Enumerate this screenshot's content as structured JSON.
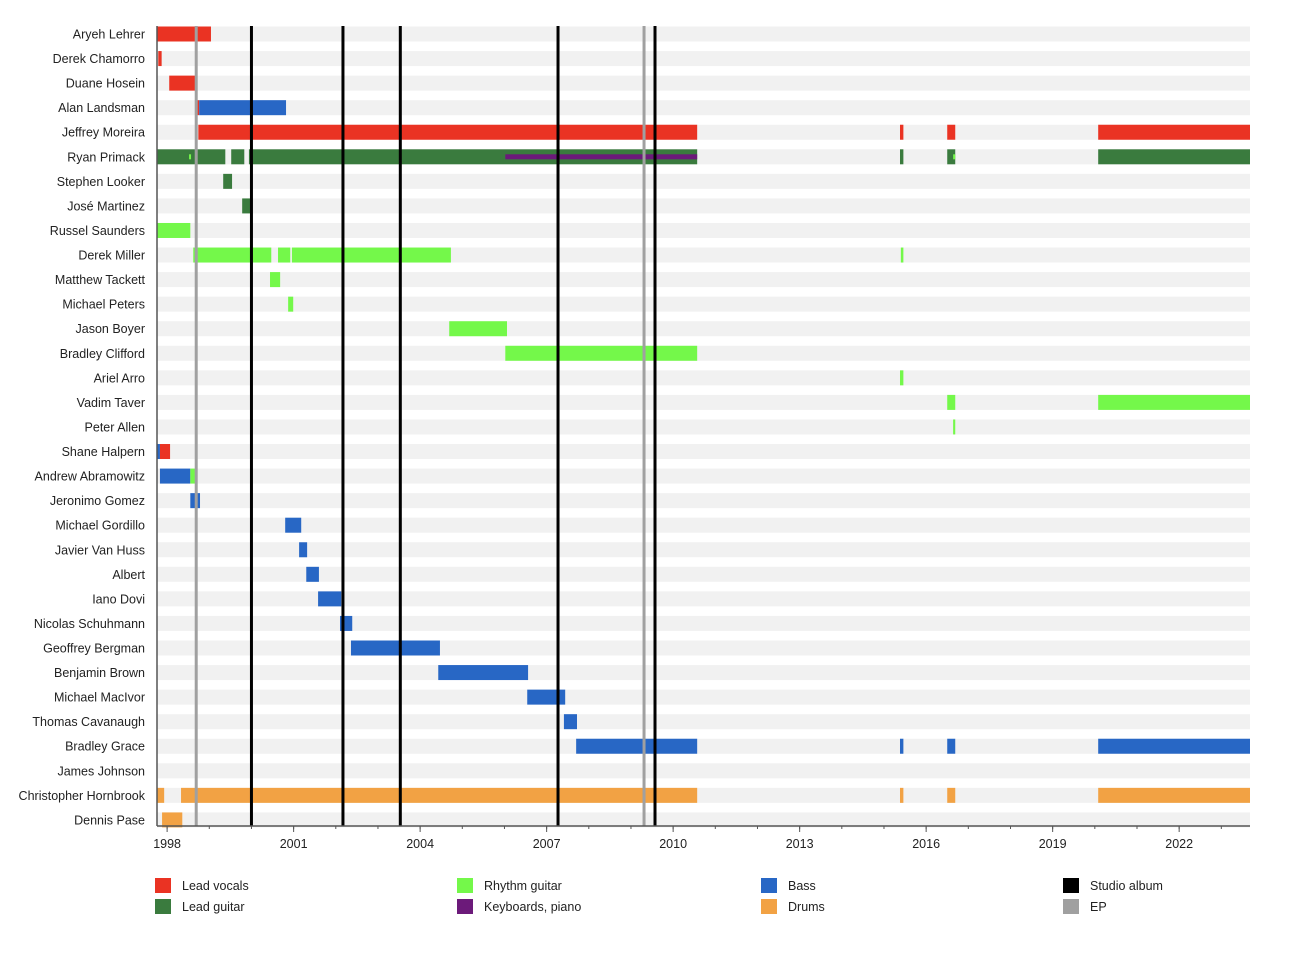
{
  "chart_data": {
    "type": "timeline",
    "title": "",
    "xlim": [
      1997.76,
      2023.68
    ],
    "x_ticks": [
      1998,
      2001,
      2004,
      2007,
      2010,
      2013,
      2016,
      2019,
      2022
    ],
    "x_tick_labels": [
      "1998",
      "2001",
      "2004",
      "2007",
      "2010",
      "2013",
      "2016",
      "2019",
      "2022"
    ],
    "minor_tick_step_years": 1,
    "roles": {
      "vocals": {
        "label": "Lead vocals",
        "color": "#ea3323"
      },
      "lead": {
        "label": "Lead guitar",
        "color": "#3a7b3e"
      },
      "rhythm": {
        "label": "Rhythm guitar",
        "color": "#74f84a"
      },
      "keys": {
        "label": "Keyboards, piano",
        "color": "#6c1a7a"
      },
      "bass": {
        "label": "Bass",
        "color": "#2867c5"
      },
      "drums": {
        "label": "Drums",
        "color": "#f2a244"
      }
    },
    "events": {
      "studio": {
        "label": "Studio album",
        "color": "#000000",
        "dates": [
          2000.0,
          2002.17,
          2003.53,
          2007.27,
          2009.57
        ]
      },
      "ep": {
        "label": "EP",
        "color": "#a0a0a0",
        "dates": [
          1998.69,
          2009.31
        ]
      }
    },
    "legend": [
      {
        "key": "vocals",
        "label": "Lead vocals",
        "color": "#ea3323"
      },
      {
        "key": "lead",
        "label": "Lead guitar",
        "color": "#3a7b3e"
      },
      {
        "key": "rhythm",
        "label": "Rhythm guitar",
        "color": "#74f84a"
      },
      {
        "key": "keys",
        "label": "Keyboards, piano",
        "color": "#6c1a7a"
      },
      {
        "key": "bass",
        "label": "Bass",
        "color": "#2867c5"
      },
      {
        "key": "drums",
        "label": "Drums",
        "color": "#f2a244"
      },
      {
        "key": "studio",
        "label": "Studio album",
        "color": "#000000"
      },
      {
        "key": "ep",
        "label": "EP",
        "color": "#a0a0a0"
      }
    ],
    "legend_placement": "bottom",
    "members": [
      {
        "name": "Aryeh Lehrer",
        "periods": [
          [
            1997.76,
            1999.04,
            "vocals"
          ]
        ]
      },
      {
        "name": "Derek Chamorro",
        "periods": [
          [
            1997.79,
            1997.87,
            "vocals"
          ]
        ]
      },
      {
        "name": "Duane Hosein",
        "periods": [
          [
            1998.05,
            1998.69,
            "vocals"
          ]
        ]
      },
      {
        "name": "Alan Landsman",
        "periods": [
          [
            1998.66,
            1998.76,
            "vocals"
          ],
          [
            1998.76,
            2000.82,
            "bass"
          ]
        ]
      },
      {
        "name": "Jeffrey Moreira",
        "periods": [
          [
            1998.74,
            2010.57,
            "vocals"
          ],
          [
            2015.38,
            2015.46,
            "vocals"
          ],
          [
            2016.5,
            2016.69,
            "vocals"
          ],
          [
            2020.08,
            2023.68,
            "vocals"
          ]
        ]
      },
      {
        "name": "Ryan Primack",
        "periods": [
          [
            1997.76,
            1999.38,
            "lead"
          ],
          [
            1998.52,
            1998.56,
            "rhythm",
            "thin"
          ],
          [
            1999.52,
            1999.83,
            "lead"
          ],
          [
            1999.94,
            2010.57,
            "lead"
          ],
          [
            2006.02,
            2010.57,
            "keys",
            "thin"
          ],
          [
            2015.38,
            2015.46,
            "lead"
          ],
          [
            2016.5,
            2016.69,
            "lead"
          ],
          [
            2016.64,
            2016.69,
            "rhythm",
            "thin"
          ],
          [
            2020.08,
            2023.68,
            "lead"
          ]
        ]
      },
      {
        "name": "Stephen Looker",
        "periods": [
          [
            1999.33,
            1999.54,
            "lead"
          ]
        ]
      },
      {
        "name": "José Martinez",
        "periods": [
          [
            1999.78,
            1999.99,
            "lead"
          ]
        ]
      },
      {
        "name": "Russel Saunders",
        "periods": [
          [
            1997.76,
            1998.55,
            "rhythm"
          ]
        ]
      },
      {
        "name": "Derek Miller",
        "periods": [
          [
            1998.62,
            2000.47,
            "rhythm"
          ],
          [
            2000.63,
            2000.92,
            "rhythm"
          ],
          [
            2000.96,
            2004.73,
            "rhythm"
          ],
          [
            2015.4,
            2015.46,
            "rhythm"
          ]
        ]
      },
      {
        "name": "Matthew Tackett",
        "periods": [
          [
            2000.44,
            2000.68,
            "rhythm"
          ]
        ]
      },
      {
        "name": "Michael Peters",
        "periods": [
          [
            2000.87,
            2000.99,
            "rhythm"
          ]
        ]
      },
      {
        "name": "Jason Boyer",
        "periods": [
          [
            2004.69,
            2006.06,
            "rhythm"
          ]
        ]
      },
      {
        "name": "Bradley Clifford",
        "periods": [
          [
            2006.02,
            2010.57,
            "rhythm"
          ]
        ]
      },
      {
        "name": "Ariel Arro",
        "periods": [
          [
            2015.38,
            2015.46,
            "rhythm"
          ]
        ]
      },
      {
        "name": "Vadim Taver",
        "periods": [
          [
            2016.5,
            2016.69,
            "rhythm"
          ],
          [
            2020.08,
            2023.68,
            "rhythm"
          ]
        ]
      },
      {
        "name": "Peter Allen",
        "periods": [
          [
            2016.64,
            2016.69,
            "rhythm"
          ]
        ]
      },
      {
        "name": "Shane Halpern",
        "periods": [
          [
            1997.76,
            1997.83,
            "bass"
          ],
          [
            1997.83,
            1998.07,
            "vocals"
          ]
        ]
      },
      {
        "name": "Andrew Abramowitz",
        "periods": [
          [
            1997.83,
            1998.55,
            "bass"
          ],
          [
            1998.55,
            1998.66,
            "rhythm"
          ]
        ]
      },
      {
        "name": "Jeronimo Gomez",
        "periods": [
          [
            1998.55,
            1998.78,
            "bass"
          ]
        ]
      },
      {
        "name": "Michael Gordillo",
        "periods": [
          [
            2000.8,
            2001.18,
            "bass"
          ]
        ]
      },
      {
        "name": "Javier Van Huss",
        "periods": [
          [
            2001.13,
            2001.32,
            "bass"
          ]
        ]
      },
      {
        "name": "Albert",
        "periods": [
          [
            2001.3,
            2001.6,
            "bass"
          ]
        ]
      },
      {
        "name": "Iano Dovi",
        "periods": [
          [
            2001.58,
            2002.13,
            "bass"
          ]
        ]
      },
      {
        "name": "Nicolas Schuhmann",
        "periods": [
          [
            2002.1,
            2002.39,
            "bass"
          ]
        ]
      },
      {
        "name": "Geoffrey Bergman",
        "periods": [
          [
            2002.36,
            2004.47,
            "bass"
          ]
        ]
      },
      {
        "name": "Benjamin Brown",
        "periods": [
          [
            2004.43,
            2006.56,
            "bass"
          ]
        ]
      },
      {
        "name": "Michael MacIvor",
        "periods": [
          [
            2006.54,
            2007.44,
            "bass"
          ]
        ]
      },
      {
        "name": "Thomas Cavanaugh",
        "periods": [
          [
            2007.41,
            2007.72,
            "bass"
          ]
        ]
      },
      {
        "name": "Bradley Grace",
        "periods": [
          [
            2007.7,
            2010.57,
            "bass"
          ],
          [
            2015.38,
            2015.46,
            "bass"
          ],
          [
            2016.5,
            2016.69,
            "bass"
          ],
          [
            2020.08,
            2023.68,
            "bass"
          ]
        ]
      },
      {
        "name": "James Johnson",
        "periods": []
      },
      {
        "name": "Christopher Hornbrook",
        "periods": [
          [
            1997.76,
            1997.93,
            "drums"
          ],
          [
            1998.33,
            2010.57,
            "drums"
          ],
          [
            2015.38,
            2015.46,
            "drums"
          ],
          [
            2016.5,
            2016.69,
            "drums"
          ],
          [
            2020.08,
            2023.68,
            "drums"
          ]
        ]
      },
      {
        "name": "Dennis Pase",
        "periods": [
          [
            1997.88,
            1998.36,
            "drums"
          ]
        ]
      }
    ]
  }
}
